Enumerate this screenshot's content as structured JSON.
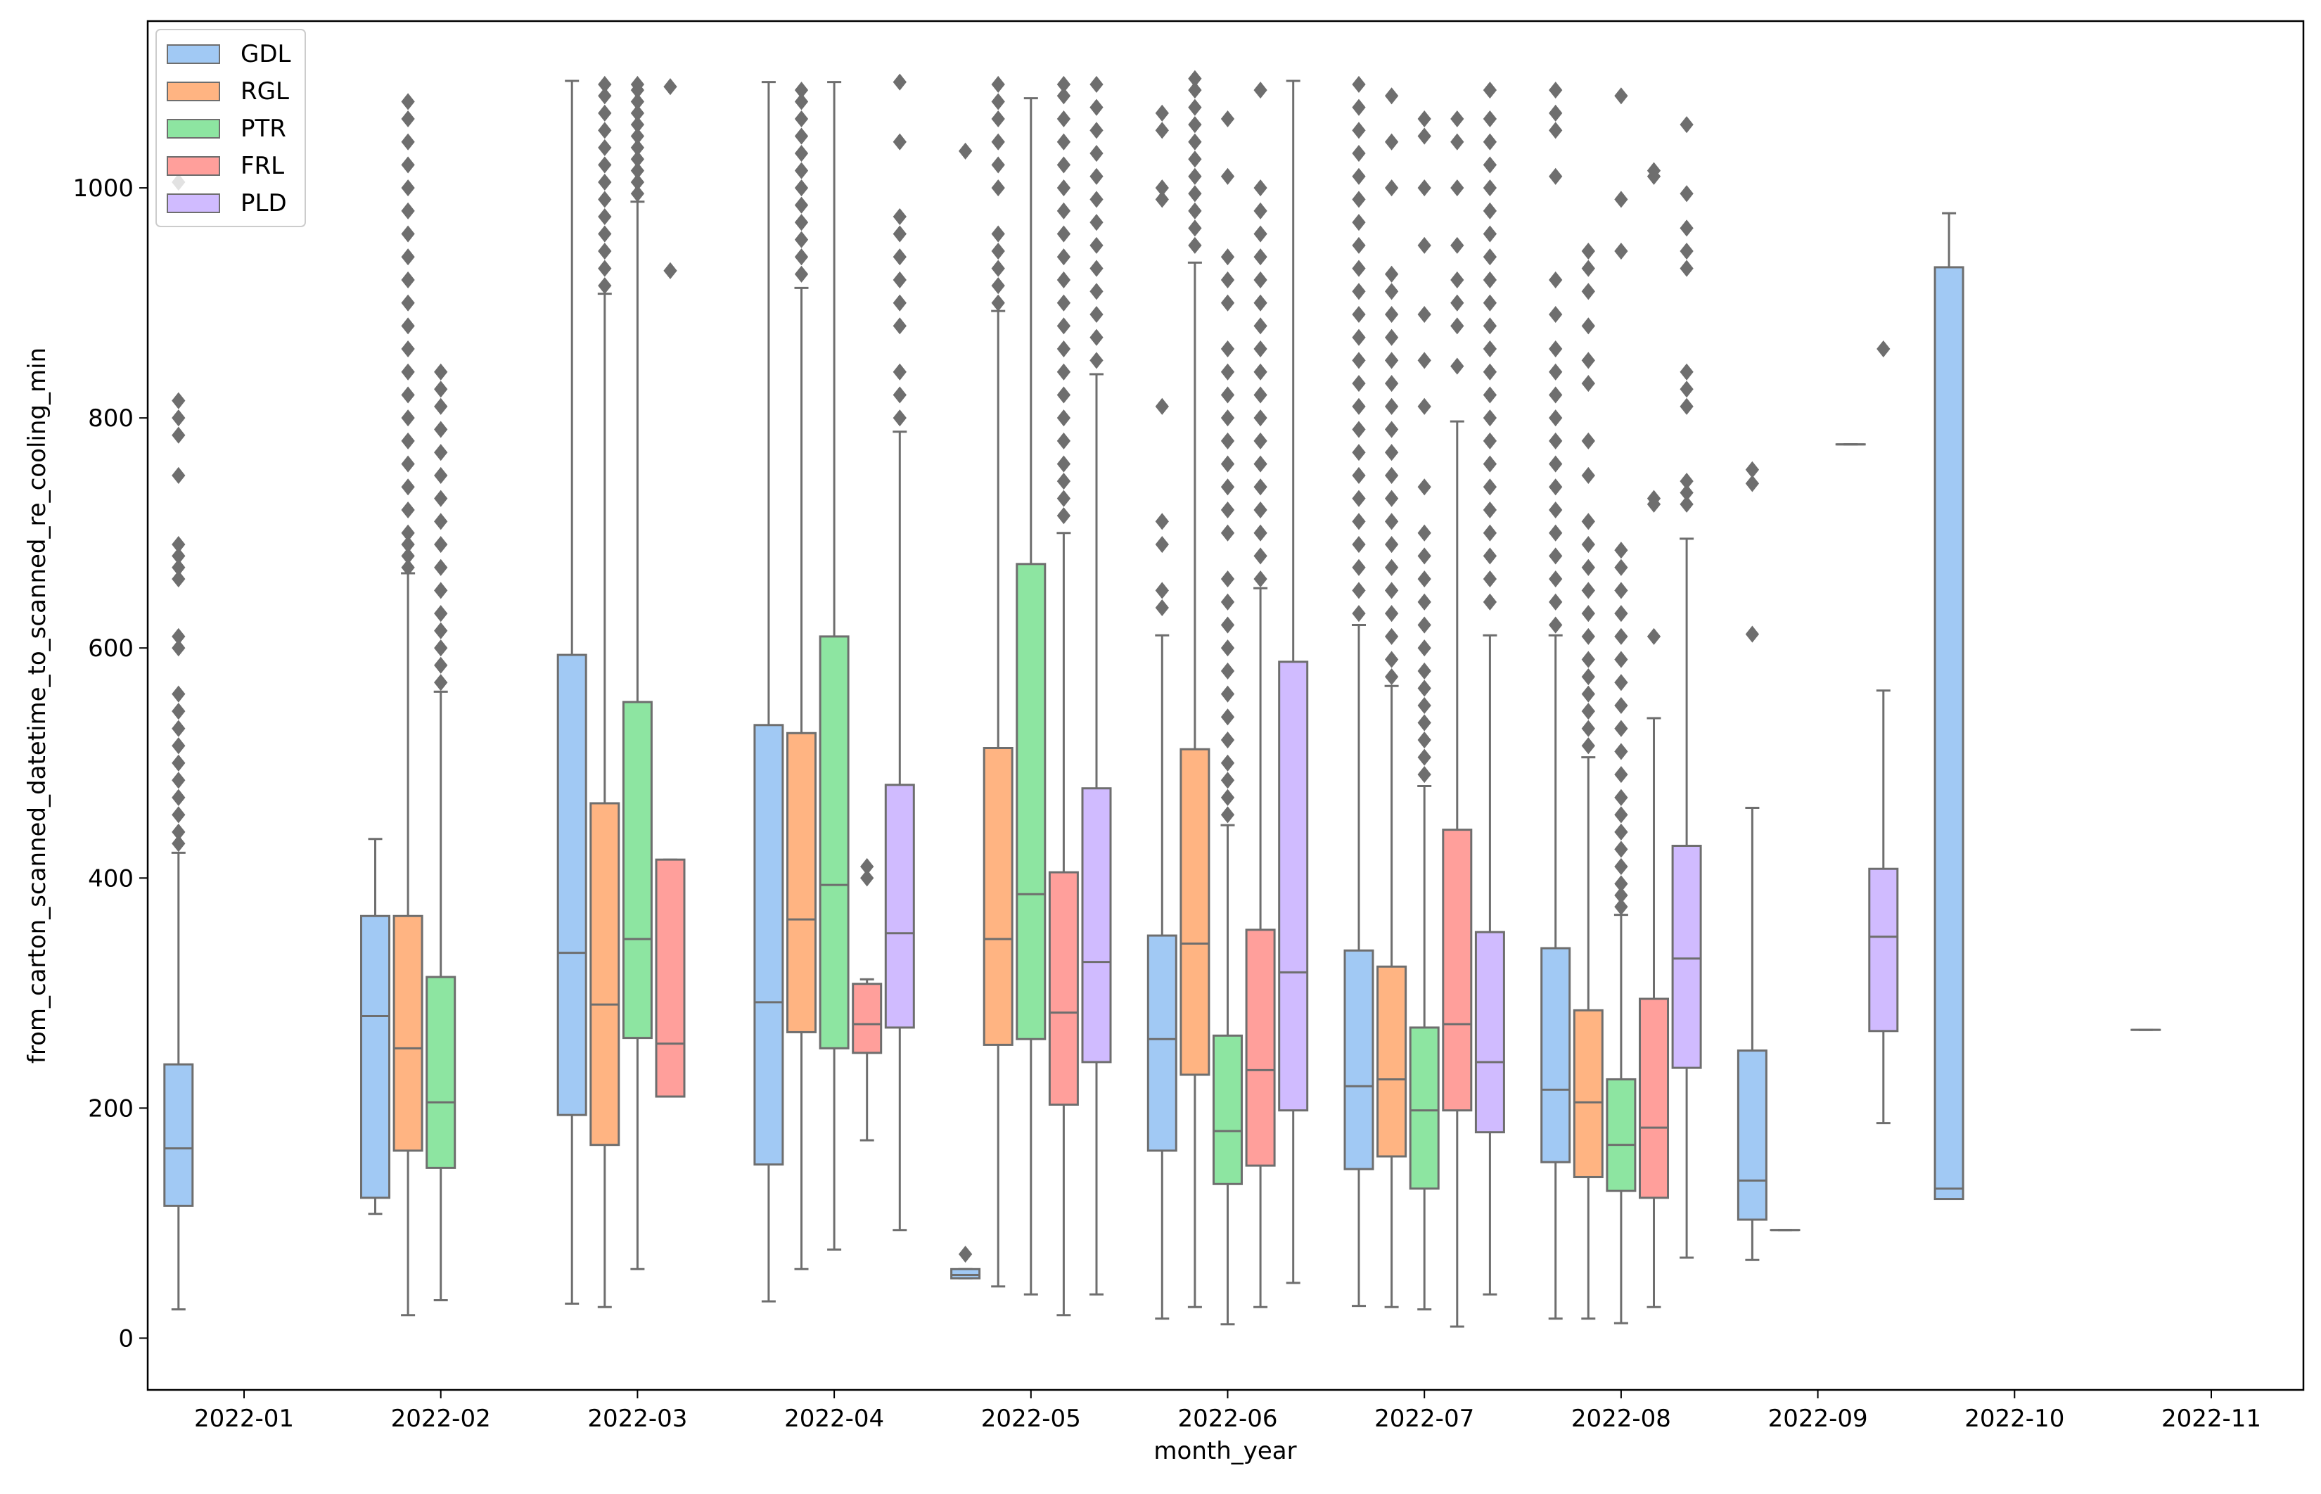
{
  "chart_data": {
    "type": "boxplot",
    "title": "",
    "xlabel": "month_year",
    "ylabel": "from_carton_scanned_datetime_to_scanned_re_cooling_min",
    "ylim": [
      -45,
      1145
    ],
    "yticks": [
      0,
      200,
      400,
      600,
      800,
      1000
    ],
    "ytick_labels": [
      "0",
      "200",
      "400",
      "600",
      "800",
      "1000"
    ],
    "categories": [
      "2022-01",
      "2022-02",
      "2022-03",
      "2022-04",
      "2022-05",
      "2022-06",
      "2022-07",
      "2022-08",
      "2022-09",
      "2022-10",
      "2022-11"
    ],
    "legend": {
      "position": "top-left",
      "entries": [
        {
          "name": "GDL",
          "color": "#a1c9f4"
        },
        {
          "name": "RGL",
          "color": "#ffb482"
        },
        {
          "name": "PTR",
          "color": "#8de5a1"
        },
        {
          "name": "FRL",
          "color": "#ff9f9b"
        },
        {
          "name": "PLD",
          "color": "#d0bbff"
        }
      ]
    },
    "line_color": "#6e6e6e",
    "boxes": [
      {
        "category": "2022-01",
        "series": "GDL",
        "whisker_low": 25,
        "q1": 115,
        "median": 165,
        "q3": 238,
        "whisker_high": 422,
        "outliers": [
          430,
          440,
          455,
          470,
          485,
          500,
          515,
          530,
          545,
          560,
          600,
          610,
          660,
          670,
          680,
          690,
          750,
          785,
          800,
          815,
          1005
        ]
      },
      {
        "category": "2022-02",
        "series": "GDL",
        "whisker_low": 108,
        "q1": 122,
        "median": 280,
        "q3": 367,
        "whisker_high": 434,
        "outliers": []
      },
      {
        "category": "2022-02",
        "series": "RGL",
        "whisker_low": 20,
        "q1": 163,
        "median": 252,
        "q3": 367,
        "whisker_high": 665,
        "outliers": [
          670,
          680,
          690,
          700,
          720,
          740,
          760,
          780,
          800,
          820,
          840,
          860,
          880,
          900,
          920,
          940,
          960,
          980,
          1000,
          1020,
          1040,
          1060,
          1075
        ]
      },
      {
        "category": "2022-02",
        "series": "PTR",
        "whisker_low": 33,
        "q1": 148,
        "median": 205,
        "q3": 314,
        "whisker_high": 562,
        "outliers": [
          570,
          585,
          600,
          615,
          630,
          650,
          670,
          690,
          710,
          730,
          750,
          770,
          790,
          810,
          825,
          840
        ]
      },
      {
        "category": "2022-03",
        "series": "GDL",
        "whisker_low": 30,
        "q1": 194,
        "median": 335,
        "q3": 594,
        "whisker_high": 1093,
        "outliers": []
      },
      {
        "category": "2022-03",
        "series": "RGL",
        "whisker_low": 27,
        "q1": 168,
        "median": 290,
        "q3": 465,
        "whisker_high": 908,
        "outliers": [
          915,
          930,
          945,
          960,
          975,
          990,
          1005,
          1020,
          1035,
          1050,
          1065,
          1080,
          1090
        ]
      },
      {
        "category": "2022-03",
        "series": "PTR",
        "whisker_low": 60,
        "q1": 261,
        "median": 347,
        "q3": 553,
        "whisker_high": 988,
        "outliers": [
          995,
          1005,
          1015,
          1025,
          1035,
          1045,
          1055,
          1065,
          1075,
          1085,
          1090
        ]
      },
      {
        "category": "2022-03",
        "series": "FRL",
        "whisker_low": 210,
        "q1": 210,
        "median": 256,
        "q3": 416,
        "whisker_high": 416,
        "outliers": [
          928,
          1088
        ]
      },
      {
        "category": "2022-04",
        "series": "GDL",
        "whisker_low": 32,
        "q1": 151,
        "median": 292,
        "q3": 533,
        "whisker_high": 1092,
        "outliers": []
      },
      {
        "category": "2022-04",
        "series": "RGL",
        "whisker_low": 60,
        "q1": 266,
        "median": 364,
        "q3": 526,
        "whisker_high": 913,
        "outliers": [
          925,
          940,
          955,
          970,
          985,
          1000,
          1015,
          1030,
          1045,
          1060,
          1075,
          1085
        ]
      },
      {
        "category": "2022-04",
        "series": "PTR",
        "whisker_low": 77,
        "q1": 252,
        "median": 394,
        "q3": 610,
        "whisker_high": 1092,
        "outliers": []
      },
      {
        "category": "2022-04",
        "series": "FRL",
        "whisker_low": 172,
        "q1": 248,
        "median": 273,
        "q3": 308,
        "whisker_high": 312,
        "outliers": [
          400,
          410
        ]
      },
      {
        "category": "2022-04",
        "series": "PLD",
        "whisker_low": 94,
        "q1": 270,
        "median": 352,
        "q3": 481,
        "whisker_high": 788,
        "outliers": [
          800,
          820,
          840,
          880,
          900,
          920,
          940,
          960,
          975,
          1040,
          1092
        ]
      },
      {
        "category": "2022-05",
        "series": "GDL",
        "whisker_low": 52,
        "q1": 52,
        "median": 55,
        "q3": 60,
        "whisker_high": 60,
        "outliers": [
          73,
          1032
        ]
      },
      {
        "category": "2022-05",
        "series": "RGL",
        "whisker_low": 45,
        "q1": 255,
        "median": 347,
        "q3": 513,
        "whisker_high": 893,
        "outliers": [
          900,
          915,
          930,
          945,
          960,
          1000,
          1020,
          1040,
          1060,
          1075,
          1090
        ]
      },
      {
        "category": "2022-05",
        "series": "PTR",
        "whisker_low": 38,
        "q1": 260,
        "median": 386,
        "q3": 673,
        "whisker_high": 1078,
        "outliers": []
      },
      {
        "category": "2022-05",
        "series": "FRL",
        "whisker_low": 20,
        "q1": 203,
        "median": 283,
        "q3": 405,
        "whisker_high": 700,
        "outliers": [
          715,
          730,
          745,
          760,
          780,
          800,
          820,
          840,
          860,
          880,
          900,
          920,
          940,
          960,
          980,
          1000,
          1020,
          1040,
          1060,
          1080,
          1090
        ]
      },
      {
        "category": "2022-05",
        "series": "PLD",
        "whisker_low": 38,
        "q1": 240,
        "median": 327,
        "q3": 478,
        "whisker_high": 838,
        "outliers": [
          850,
          870,
          890,
          910,
          930,
          950,
          970,
          990,
          1010,
          1030,
          1050,
          1070,
          1090
        ]
      },
      {
        "category": "2022-06",
        "series": "GDL",
        "whisker_low": 17,
        "q1": 163,
        "median": 260,
        "q3": 350,
        "whisker_high": 611,
        "outliers": [
          635,
          650,
          690,
          710,
          810,
          990,
          1000,
          1050,
          1065
        ]
      },
      {
        "category": "2022-06",
        "series": "RGL",
        "whisker_low": 27,
        "q1": 229,
        "median": 343,
        "q3": 512,
        "whisker_high": 935,
        "outliers": [
          950,
          965,
          980,
          995,
          1010,
          1025,
          1040,
          1055,
          1070,
          1085,
          1095
        ]
      },
      {
        "category": "2022-06",
        "series": "PTR",
        "whisker_low": 12,
        "q1": 134,
        "median": 180,
        "q3": 263,
        "whisker_high": 446,
        "outliers": [
          455,
          470,
          485,
          500,
          520,
          540,
          560,
          580,
          600,
          620,
          640,
          660,
          700,
          720,
          740,
          760,
          780,
          800,
          820,
          840,
          860,
          900,
          920,
          940,
          1010,
          1060
        ]
      },
      {
        "category": "2022-06",
        "series": "FRL",
        "whisker_low": 27,
        "q1": 150,
        "median": 233,
        "q3": 355,
        "whisker_high": 652,
        "outliers": [
          660,
          680,
          700,
          720,
          740,
          760,
          780,
          800,
          820,
          840,
          860,
          880,
          900,
          920,
          940,
          960,
          980,
          1000,
          1085
        ]
      },
      {
        "category": "2022-06",
        "series": "PLD",
        "whisker_low": 48,
        "q1": 198,
        "median": 318,
        "q3": 588,
        "whisker_high": 1093,
        "outliers": []
      },
      {
        "category": "2022-07",
        "series": "GDL",
        "whisker_low": 28,
        "q1": 147,
        "median": 219,
        "q3": 337,
        "whisker_high": 620,
        "outliers": [
          630,
          650,
          670,
          690,
          710,
          730,
          750,
          770,
          790,
          810,
          830,
          850,
          870,
          890,
          910,
          930,
          950,
          970,
          990,
          1010,
          1030,
          1050,
          1070,
          1090
        ]
      },
      {
        "category": "2022-07",
        "series": "RGL",
        "whisker_low": 27,
        "q1": 158,
        "median": 225,
        "q3": 323,
        "whisker_high": 567,
        "outliers": [
          575,
          590,
          610,
          630,
          650,
          670,
          690,
          710,
          730,
          750,
          770,
          790,
          810,
          830,
          850,
          870,
          890,
          910,
          925,
          1000,
          1040,
          1080
        ]
      },
      {
        "category": "2022-07",
        "series": "PTR",
        "whisker_low": 25,
        "q1": 130,
        "median": 198,
        "q3": 270,
        "whisker_high": 480,
        "outliers": [
          490,
          505,
          520,
          535,
          550,
          565,
          580,
          600,
          620,
          640,
          660,
          680,
          700,
          740,
          810,
          850,
          890,
          950,
          1000,
          1045,
          1060
        ]
      },
      {
        "category": "2022-07",
        "series": "FRL",
        "whisker_low": 10,
        "q1": 198,
        "median": 273,
        "q3": 442,
        "whisker_high": 797,
        "outliers": [
          845,
          880,
          900,
          920,
          950,
          1000,
          1040,
          1060
        ]
      },
      {
        "category": "2022-07",
        "series": "PLD",
        "whisker_low": 38,
        "q1": 179,
        "median": 240,
        "q3": 353,
        "whisker_high": 611,
        "outliers": [
          640,
          660,
          680,
          700,
          720,
          740,
          760,
          780,
          800,
          820,
          840,
          860,
          880,
          900,
          920,
          940,
          960,
          980,
          1000,
          1020,
          1040,
          1060,
          1085
        ]
      },
      {
        "category": "2022-08",
        "series": "GDL",
        "whisker_low": 17,
        "q1": 153,
        "median": 216,
        "q3": 339,
        "whisker_high": 611,
        "outliers": [
          620,
          640,
          660,
          680,
          700,
          720,
          740,
          760,
          780,
          800,
          820,
          840,
          860,
          890,
          920,
          1010,
          1050,
          1065,
          1085
        ]
      },
      {
        "category": "2022-08",
        "series": "RGL",
        "whisker_low": 17,
        "q1": 140,
        "median": 205,
        "q3": 285,
        "whisker_high": 505,
        "outliers": [
          515,
          530,
          545,
          560,
          575,
          590,
          610,
          630,
          650,
          670,
          690,
          710,
          750,
          780,
          830,
          850,
          880,
          910,
          930,
          945
        ]
      },
      {
        "category": "2022-08",
        "series": "PTR",
        "whisker_low": 13,
        "q1": 128,
        "median": 168,
        "q3": 225,
        "whisker_high": 368,
        "outliers": [
          375,
          385,
          395,
          410,
          425,
          440,
          455,
          470,
          490,
          510,
          530,
          550,
          570,
          590,
          610,
          630,
          650,
          670,
          685,
          945,
          990,
          1080
        ]
      },
      {
        "category": "2022-08",
        "series": "FRL",
        "whisker_low": 27,
        "q1": 122,
        "median": 183,
        "q3": 295,
        "whisker_high": 539,
        "outliers": [
          610,
          725,
          730,
          1010,
          1015
        ]
      },
      {
        "category": "2022-08",
        "series": "PLD",
        "whisker_low": 70,
        "q1": 235,
        "median": 330,
        "q3": 428,
        "whisker_high": 695,
        "outliers": [
          725,
          735,
          745,
          810,
          825,
          840,
          930,
          945,
          965,
          995,
          1055
        ]
      },
      {
        "category": "2022-09",
        "series": "GDL",
        "whisker_low": 68,
        "q1": 103,
        "median": 137,
        "q3": 250,
        "whisker_high": 461,
        "outliers": [
          612,
          743,
          755
        ]
      },
      {
        "category": "2022-09",
        "series": "RGL",
        "whisker_low": 94,
        "q1": 94,
        "median": 94,
        "q3": 94,
        "whisker_high": 94,
        "outliers": []
      },
      {
        "category": "2022-09",
        "series": "FRL",
        "whisker_low": 777,
        "q1": 777,
        "median": 777,
        "q3": 777,
        "whisker_high": 777,
        "outliers": []
      },
      {
        "category": "2022-09",
        "series": "PLD",
        "whisker_low": 187,
        "q1": 267,
        "median": 349,
        "q3": 408,
        "whisker_high": 563,
        "outliers": [
          860
        ]
      },
      {
        "category": "2022-10",
        "series": "GDL",
        "whisker_low": 121,
        "q1": 121,
        "median": 130,
        "q3": 931,
        "whisker_high": 978,
        "outliers": []
      },
      {
        "category": "2022-11",
        "series": "GDL",
        "whisker_low": 268,
        "q1": 268,
        "median": 268,
        "q3": 268,
        "whisker_high": 268,
        "outliers": []
      }
    ]
  }
}
